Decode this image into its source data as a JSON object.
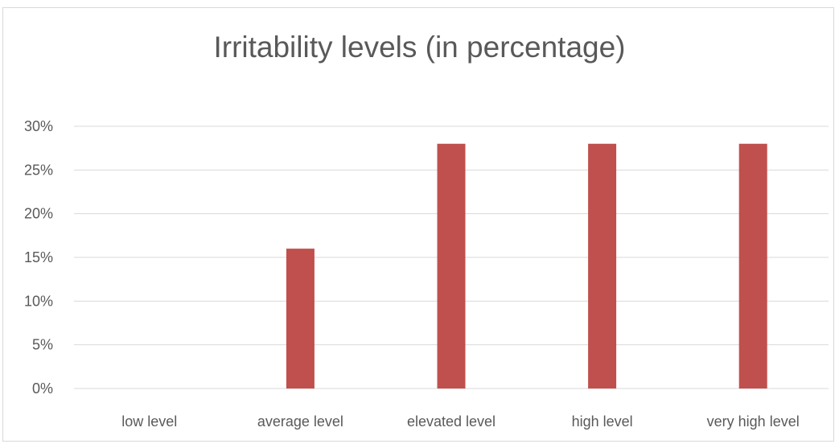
{
  "chart_data": {
    "type": "bar",
    "title": "Irritability levels (in percentage)",
    "categories": [
      "low level",
      "average level",
      "elevated level",
      "high level",
      "very high level"
    ],
    "values": [
      0,
      16,
      28,
      28,
      28
    ],
    "ylim": [
      0,
      30
    ],
    "yticks": [
      0,
      5,
      10,
      15,
      20,
      25,
      30
    ],
    "ytick_suffix": "%",
    "xlabel": "",
    "ylabel": "",
    "grid": true,
    "legend": "none",
    "bar_color": "#c0504d",
    "grid_color": "#d9d9d9"
  }
}
